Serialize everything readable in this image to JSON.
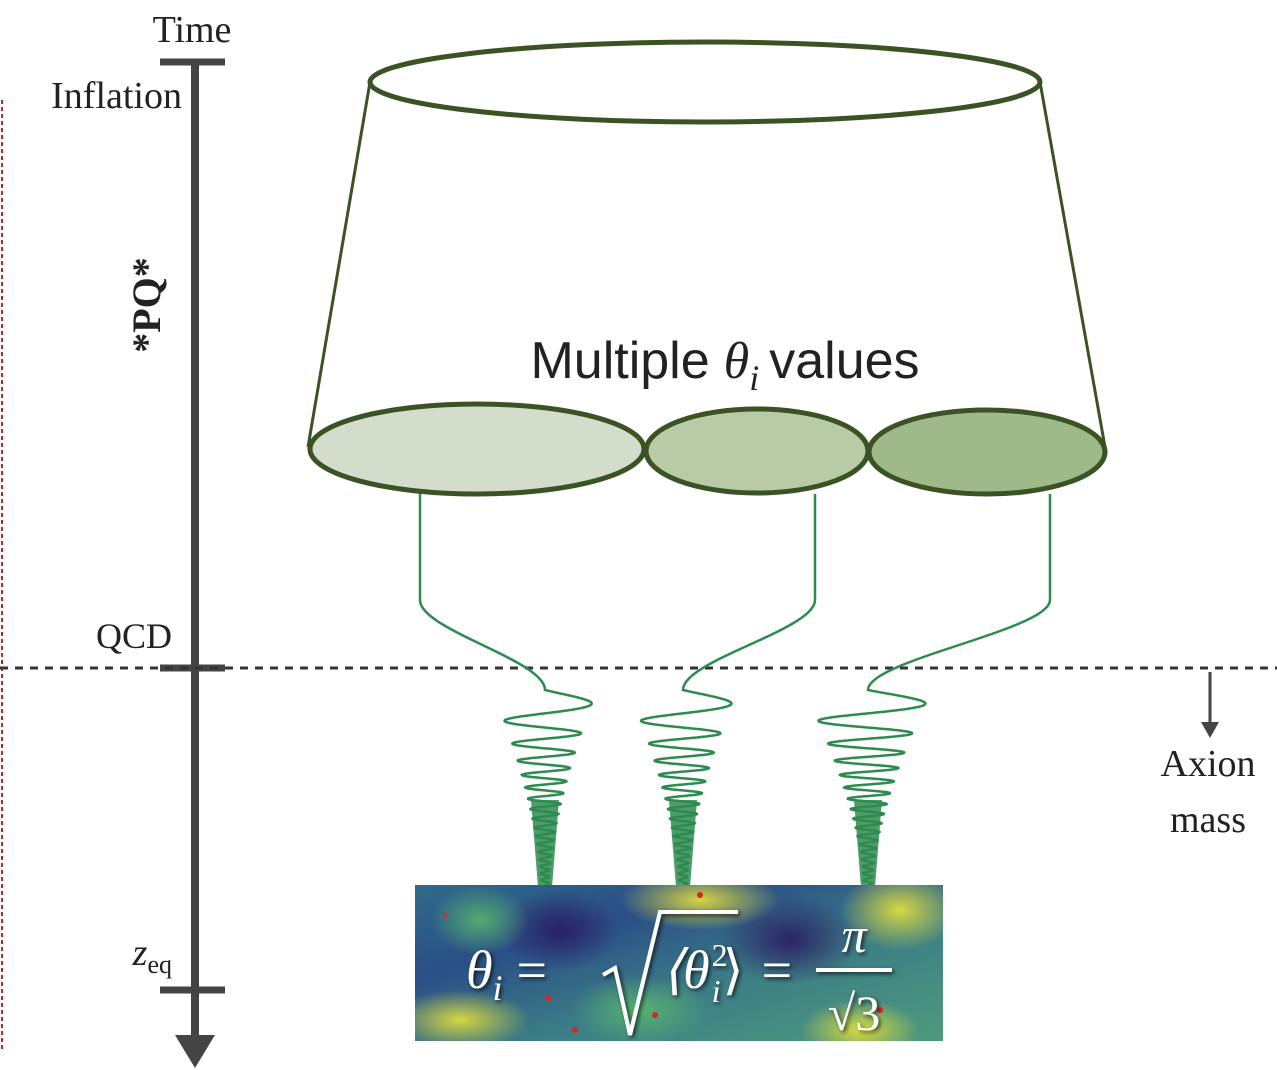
{
  "timeline": {
    "title": "Time",
    "inflation": "Inflation",
    "pq": "*PQ*",
    "qcd": "QCD",
    "zeq": {
      "base": "z",
      "sub": "eq"
    }
  },
  "caption": {
    "prefix": "Multiple",
    "symbol": "θ",
    "sub": "i",
    "suffix": "values"
  },
  "axion": {
    "line1": "Axion",
    "line2": "mass"
  },
  "equation": {
    "lhs": "θ",
    "lhs_sub": "i",
    "eq1": "=",
    "open": "⟨θ",
    "sup": "2",
    "sub": "i",
    "close": "⟩",
    "eq2": "=",
    "num": "π",
    "den": "√3"
  }
}
